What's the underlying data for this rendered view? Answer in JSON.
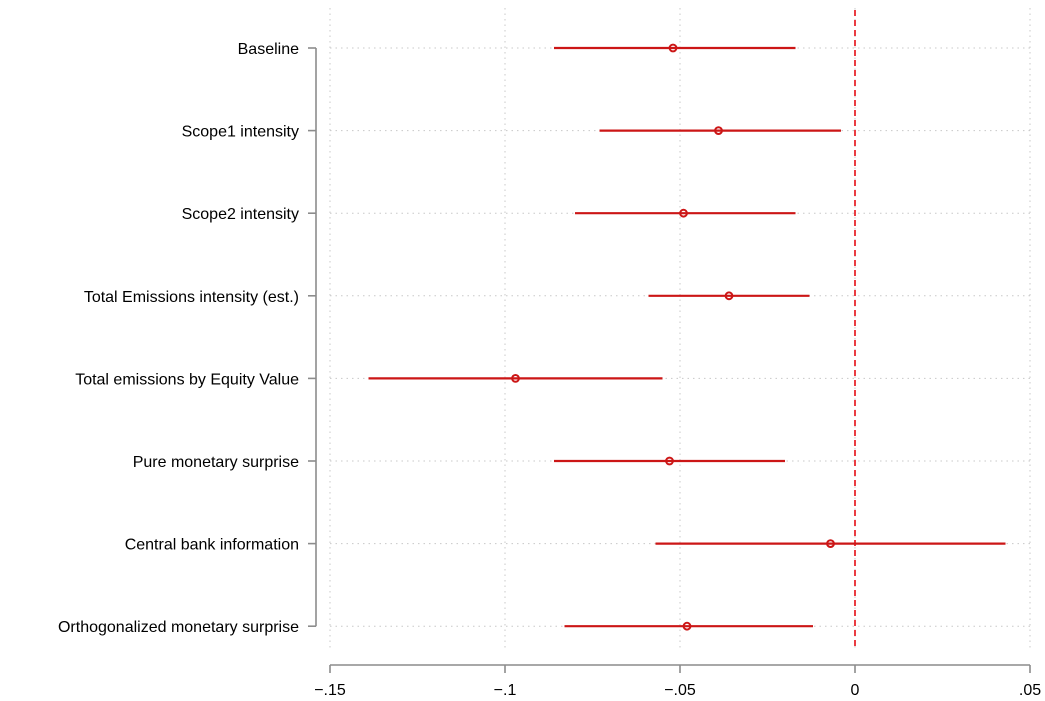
{
  "chart_data": {
    "type": "scatter",
    "subtype": "coefficient-plot",
    "title": "",
    "xlabel": "",
    "ylabel": "",
    "xlim": [
      -0.15,
      0.05
    ],
    "x_ticks": [
      {
        "value": -0.15,
        "label": "−.15"
      },
      {
        "value": -0.1,
        "label": "−.1"
      },
      {
        "value": -0.05,
        "label": "−.05"
      },
      {
        "value": 0,
        "label": "0"
      },
      {
        "value": 0.05,
        "label": ".05"
      }
    ],
    "reference_line": {
      "x": 0,
      "style": "dashed",
      "color": "#e8262d"
    },
    "grid": true,
    "marker_color": "#cc1616",
    "line_color": "#cc1616",
    "categories": [
      "Baseline",
      "Scope1 intensity",
      "Scope2 intensity",
      "Total Emissions intensity (est.)",
      "Total emissions by Equity Value",
      "Pure monetary surprise",
      "Central bank information",
      "Orthogonalized monetary surprise"
    ],
    "estimates": [
      -0.052,
      -0.039,
      -0.049,
      -0.036,
      -0.097,
      -0.053,
      -0.007,
      -0.048
    ],
    "ci_low": [
      -0.086,
      -0.073,
      -0.08,
      -0.059,
      -0.139,
      -0.086,
      -0.057,
      -0.083
    ],
    "ci_high": [
      -0.017,
      -0.004,
      -0.017,
      -0.013,
      -0.055,
      -0.02,
      0.043,
      -0.012
    ]
  }
}
